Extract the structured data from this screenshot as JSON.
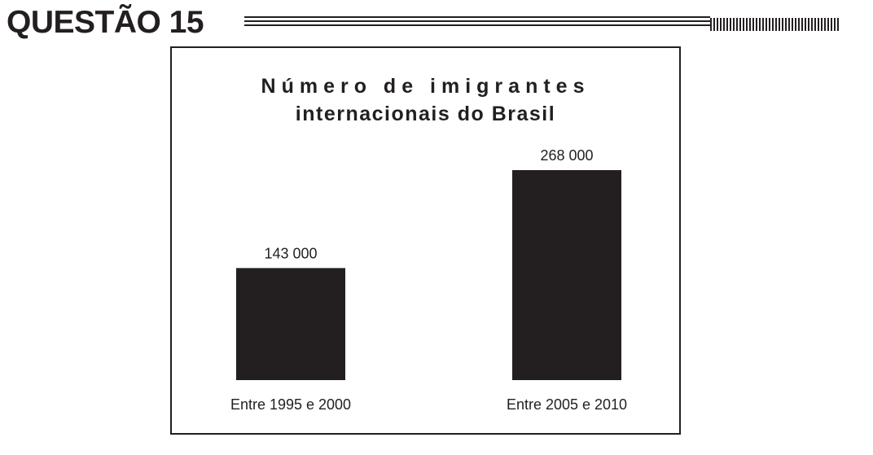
{
  "header": {
    "title": "QUESTÃO 15"
  },
  "chart_data": {
    "type": "bar",
    "title_line1": "Número de imigrantes",
    "title_line2": "internacionais do Brasil",
    "categories": [
      "Entre 1995 e 2000",
      "Entre 2005 e 2010"
    ],
    "values": [
      143000,
      268000
    ],
    "value_labels": [
      "143 000",
      "268 000"
    ],
    "bar_color": "#231f20",
    "xlabel": "",
    "ylabel": "",
    "ylim": [
      0,
      268000
    ],
    "grid": false
  }
}
